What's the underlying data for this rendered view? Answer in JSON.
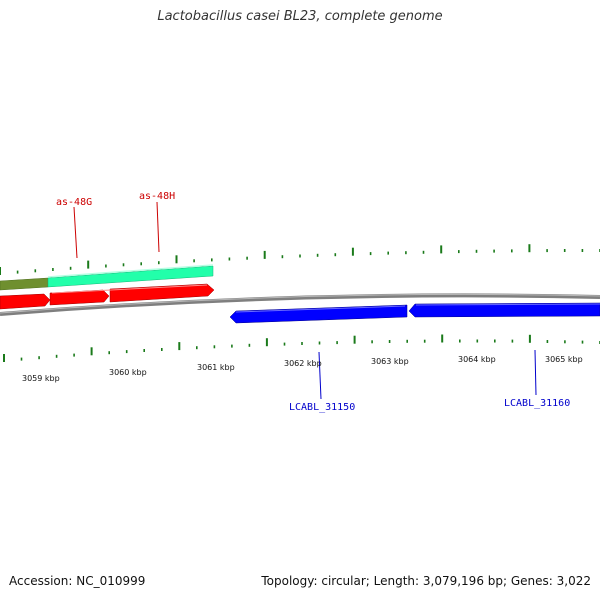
{
  "title": "Lactobacillus casei BL23, complete genome",
  "footer": {
    "accession": "Accession: NC_010999",
    "summary": "Topology: circular; Length: 3,079,196 bp; Genes: 3,022"
  },
  "colors": {
    "tick": "#1a7a1a",
    "backbone": "#7f7f7f",
    "gene_red": "#ff0000",
    "gene_blue": "#0000ff",
    "gene_teal": "#22ffaa",
    "gene_olive": "#6f8f2f",
    "label_red": "#cc0000",
    "label_blue": "#0000cc"
  },
  "scale": {
    "unit": "kbp",
    "labels": [
      "3059 kbp",
      "3060 kbp",
      "3061 kbp",
      "3062 kbp",
      "3063 kbp",
      "3064 kbp",
      "3065 kbp"
    ]
  },
  "genes": [
    {
      "label": "as-48G",
      "strand": "forward",
      "color": "red"
    },
    {
      "label": "as-48H",
      "strand": "forward",
      "color": "red"
    },
    {
      "label": "LCABL_31150",
      "strand": "reverse",
      "color": "blue"
    },
    {
      "label": "LCABL_31160",
      "strand": "reverse",
      "color": "blue"
    }
  ]
}
